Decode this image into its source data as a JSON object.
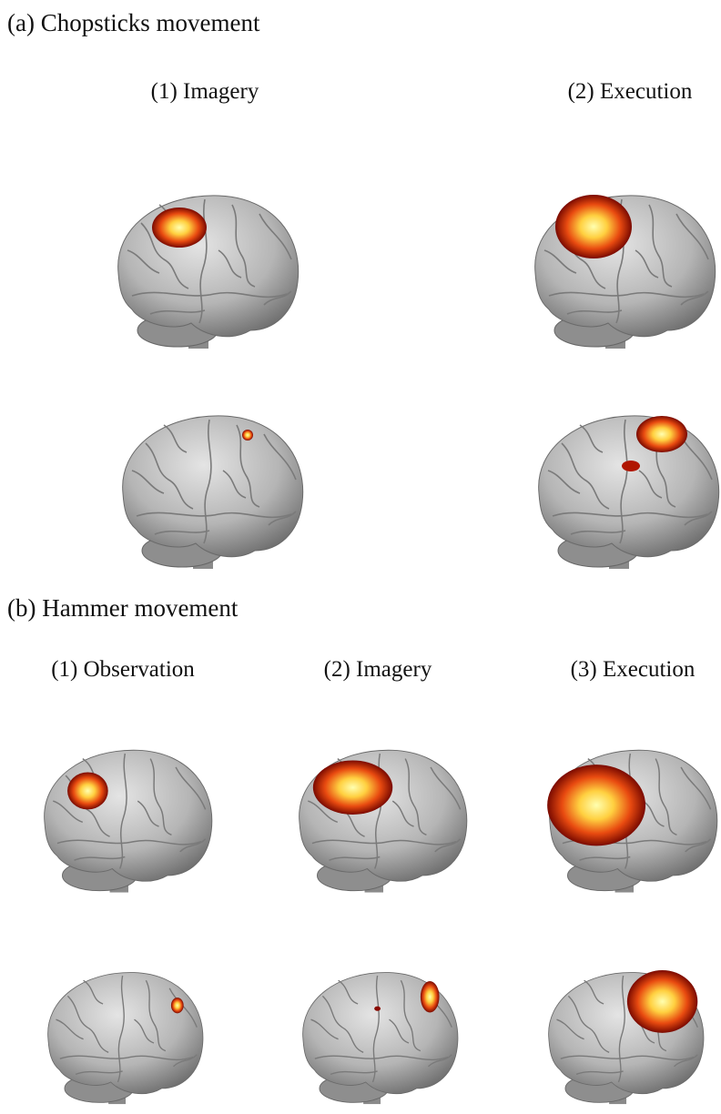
{
  "panel_a": {
    "title": "(a) Chopsticks movement",
    "columns": [
      "(1) Imagery",
      "(2) Execution"
    ]
  },
  "panel_b": {
    "title": "(b) Hammer movement",
    "columns": [
      "(1) Observation",
      "(2) Imagery",
      "(3) Execution"
    ]
  }
}
